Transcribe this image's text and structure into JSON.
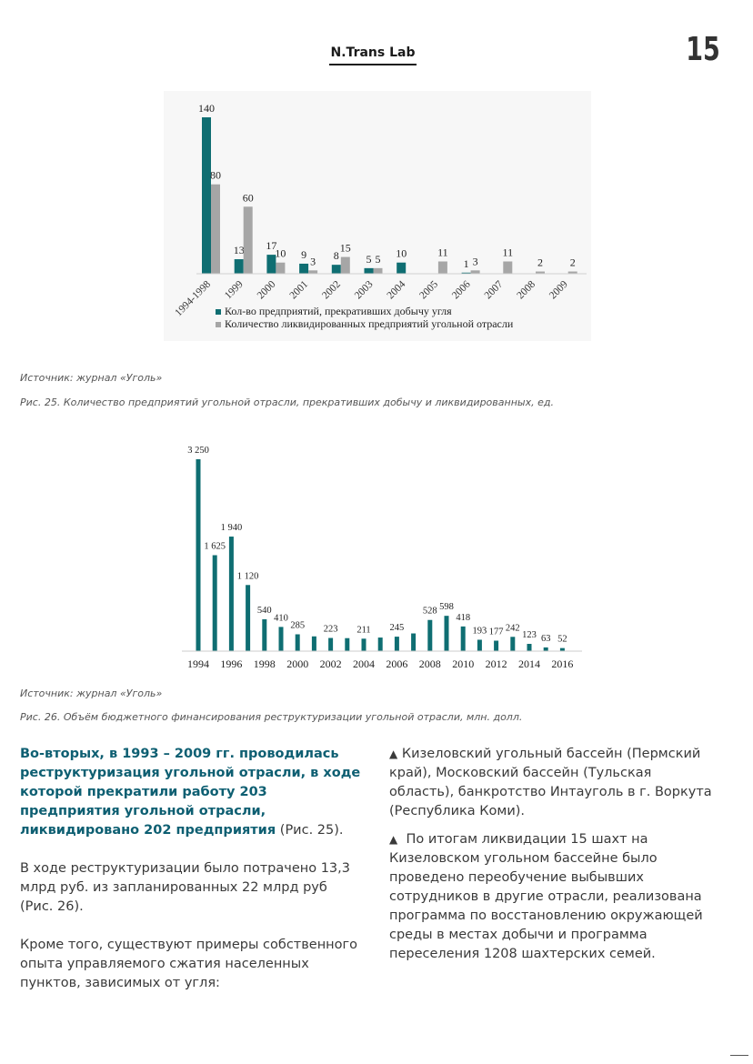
{
  "header": {
    "logo": "N.Trans Lab",
    "page_number": "15"
  },
  "figure25": {
    "source": "Источник: журнал «Уголь»",
    "caption": "Рис. 25. Количество предприятий угольной отрасли, прекративших добычу и ликвидированных, ед."
  },
  "figure26": {
    "source": "Источник: журнал «Уголь»",
    "caption": "Рис. 26. Объём бюджетного финансирования реструктуризации угольной отрасли, млн. долл."
  },
  "body": {
    "left": {
      "lead": "Во-вторых, в 1993 – 2009 гг. проводилась реструктуризация угольной отрасли, в ходе которой прекратили работу 203 предприятия угольной отрасли, ликвидировано 202 предприятия",
      "lead_ref": " (Рис. 25).",
      "p2": "В ходе реструктуризации было потрачено 13,3 млрд руб. из запланированных 22 млрд руб (Рис. 26).",
      "p3": "Кроме того, существуют примеры собственного опыта управляемого сжатия населенных пунктов, зависимых от угля:"
    },
    "right": {
      "bullet1": "Кизеловский угольный бассейн (Пермский край), Московский бассейн (Тульская область), банкротство Интауголь в г. Воркута (Республика Коми).",
      "bullet2": "По итогам ликвидации 15 шахт на Кизеловском угольном бассейне было проведено переобучение выбывших сотрудников в другие отрасли, реализована программа по восстановлению окружающей среды в местах добычи и программа переселения 1208 шахтерских семей."
    }
  },
  "chart_data": [
    {
      "type": "bar",
      "categories": [
        "1994-1998",
        "1999",
        "2000",
        "2001",
        "2002",
        "2003",
        "2004",
        "2005",
        "2006",
        "2007",
        "2008",
        "2009"
      ],
      "series": [
        {
          "name": "Кол-во предприятий, прекративших добычу угля",
          "color": "#0f6e72",
          "values": [
            140,
            13,
            17,
            9,
            8,
            5,
            10,
            null,
            1,
            null,
            null,
            null
          ]
        },
        {
          "name": "Количество ликвидированных предприятий угольной отрасли",
          "color": "#a6a6a6",
          "values": [
            80,
            60,
            10,
            3,
            15,
            5,
            null,
            11,
            3,
            11,
            2,
            2
          ]
        }
      ],
      "ylim": [
        0,
        140
      ],
      "legend": "bottom",
      "grid": false
    },
    {
      "type": "bar",
      "categories": [
        "1994",
        "1995",
        "1996",
        "1997",
        "1998",
        "1999",
        "2000",
        "2001",
        "2002",
        "2003",
        "2004",
        "2005",
        "2006",
        "2007",
        "2008",
        "2009",
        "2010",
        "2011",
        "2012",
        "2013",
        "2014",
        "2015",
        "2016"
      ],
      "tick_labels": [
        "1994",
        "1996",
        "1998",
        "2000",
        "2002",
        "2004",
        "2006",
        "2008",
        "2010",
        "2012",
        "2014",
        "2016"
      ],
      "values": [
        3250,
        1625,
        1940,
        1120,
        540,
        410,
        285,
        250,
        223,
        220,
        211,
        230,
        245,
        300,
        528,
        598,
        418,
        193,
        177,
        242,
        123,
        63,
        52
      ],
      "data_labels": [
        "3 250",
        "1 625",
        "1 940",
        "1 120",
        "540",
        "410",
        "285",
        "",
        "223",
        "",
        "211",
        "",
        "245",
        "",
        "528",
        "598",
        "418",
        "193",
        "177",
        "242",
        "123",
        "63",
        "52"
      ],
      "color": "#0f6e72",
      "ylim": [
        0,
        3250
      ],
      "grid": false
    }
  ]
}
